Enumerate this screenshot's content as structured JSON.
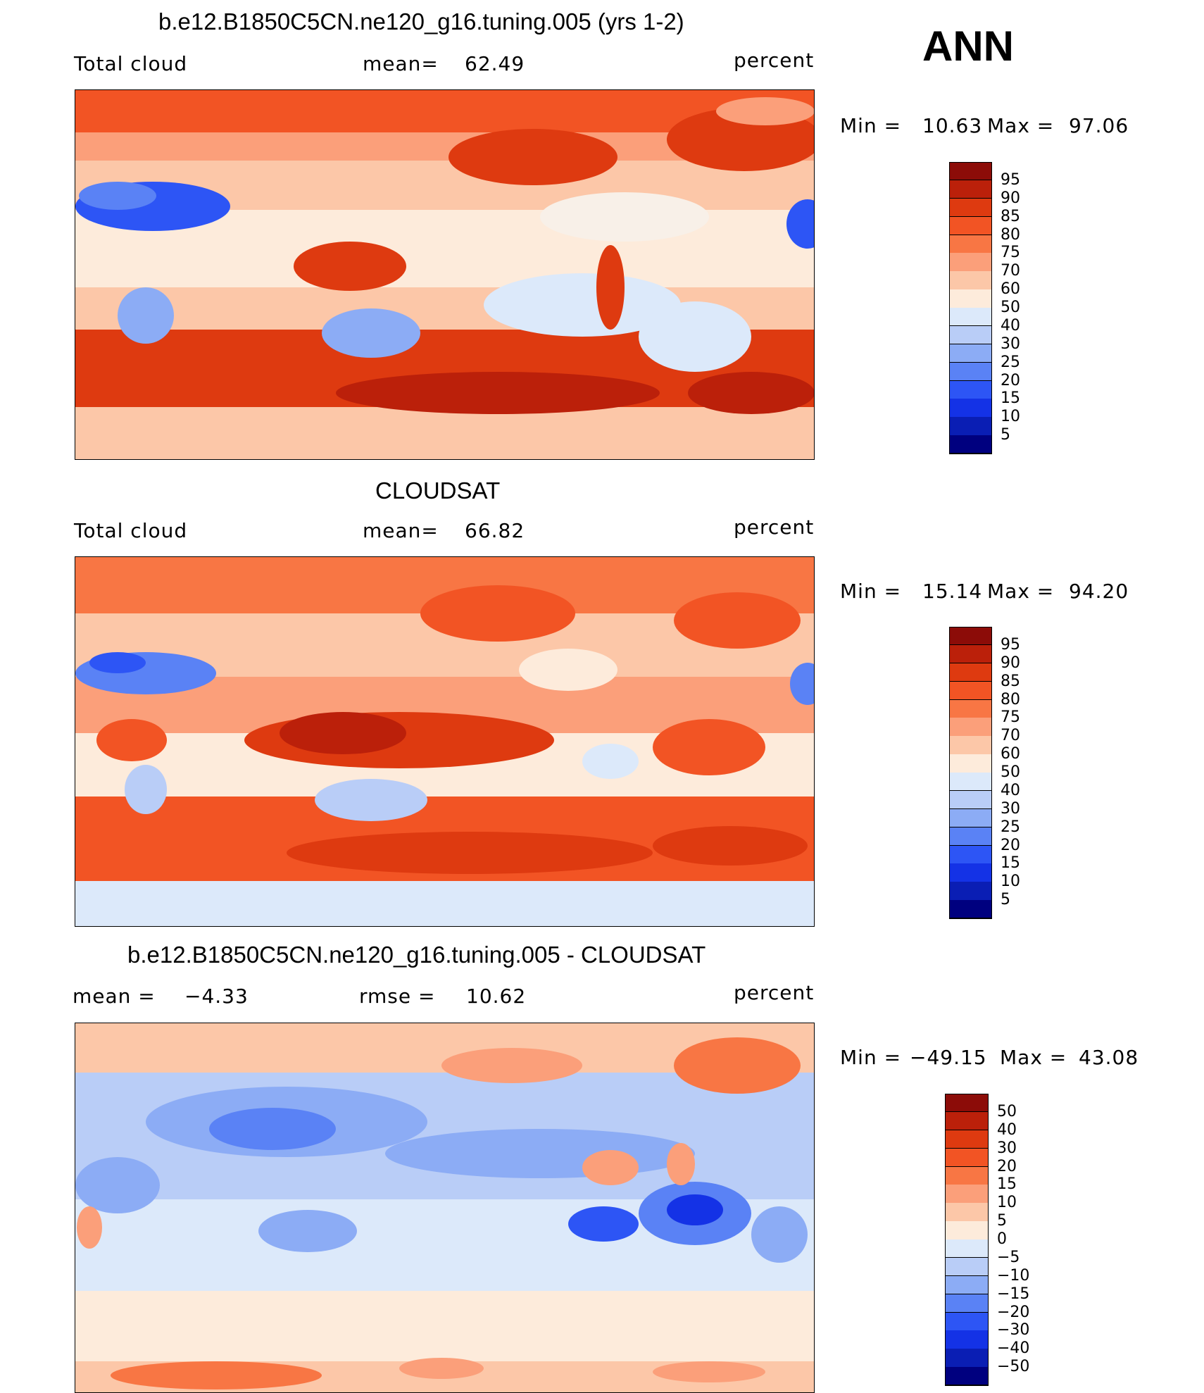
{
  "season": "ANN",
  "colorscale_abs": [
    "#00007f",
    "#0a1eb4",
    "#1432e6",
    "#2d55f5",
    "#5a82f5",
    "#8cacf5",
    "#b9cdf7",
    "#dce9fa",
    "#fdebdb",
    "#fcc7a8",
    "#fb9f7a",
    "#f87644",
    "#f25424",
    "#de3a10",
    "#bb200a",
    "#8c0c08"
  ],
  "colorscale_diff": [
    "#00007f",
    "#0a1eb4",
    "#1432e6",
    "#2d55f5",
    "#5a82f5",
    "#8cacf5",
    "#b9cdf7",
    "#dce9fa",
    "#fdebdb",
    "#fcc7a8",
    "#fb9f7a",
    "#f87644",
    "#f25424",
    "#de3a10",
    "#bb200a",
    "#8c0c08"
  ],
  "chart_data": [
    {
      "type": "heatmap",
      "title": "b.e12.B1850C5CN.ne120_g16.tuning.005 (yrs 1-2)",
      "variable": "Total cloud",
      "mean_label": "mean=",
      "mean": "62.49",
      "units": "percent",
      "min_label": "Min =",
      "min": "10.63",
      "max_label": "Max =",
      "max": "97.06",
      "colorbar_levels": [
        "95",
        "90",
        "85",
        "80",
        "75",
        "70",
        "60",
        "50",
        "40",
        "30",
        "25",
        "20",
        "15",
        "10",
        "5"
      ]
    },
    {
      "type": "heatmap",
      "title": "CLOUDSAT",
      "variable": "Total cloud",
      "mean_label": "mean=",
      "mean": "66.82",
      "units": "percent",
      "min_label": "Min =",
      "min": "15.14",
      "max_label": "Max =",
      "max": "94.20",
      "colorbar_levels": [
        "95",
        "90",
        "85",
        "80",
        "75",
        "70",
        "60",
        "50",
        "40",
        "30",
        "25",
        "20",
        "15",
        "10",
        "5"
      ]
    },
    {
      "type": "heatmap",
      "title": "b.e12.B1850C5CN.ne120_g16.tuning.005 - CLOUDSAT",
      "mean_label": "mean =",
      "mean": "−4.33",
      "rmse_label": "rmse =",
      "rmse": "10.62",
      "units": "percent",
      "min_label": "Min =",
      "min": "−49.15",
      "max_label": "Max =",
      "max": "43.08",
      "colorbar_levels": [
        "50",
        "40",
        "30",
        "20",
        "15",
        "10",
        "5",
        "0",
        "−5",
        "−10",
        "−15",
        "−20",
        "−30",
        "−40",
        "−50"
      ]
    }
  ]
}
